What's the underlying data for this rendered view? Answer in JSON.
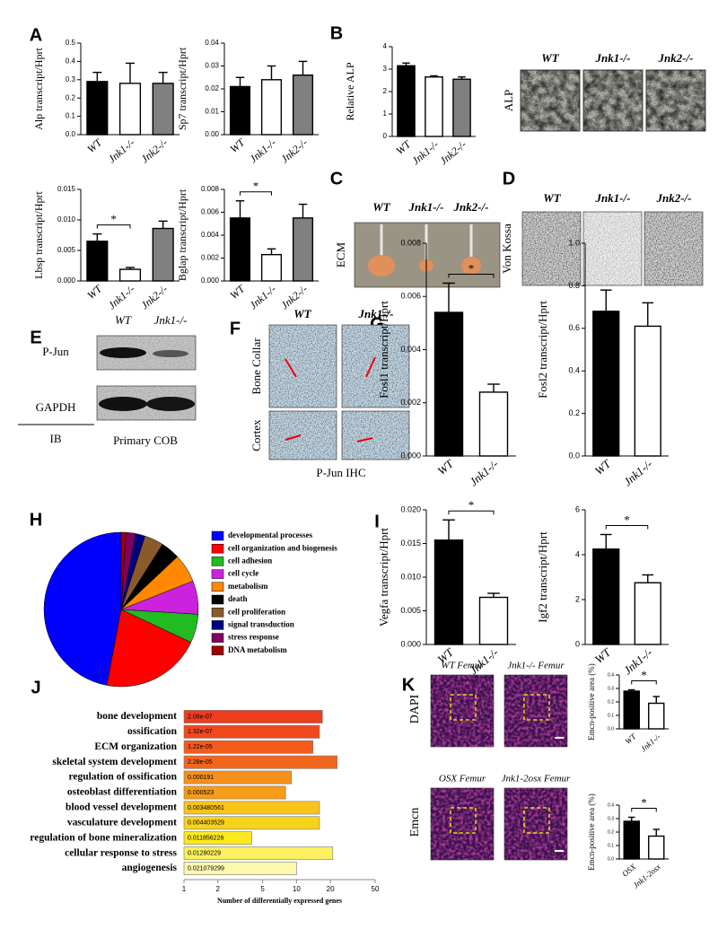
{
  "panel_labels": [
    "A",
    "B",
    "C",
    "D",
    "E",
    "F",
    "G",
    "H",
    "I",
    "J",
    "K"
  ],
  "alp_images": {
    "label": "ALP",
    "columns": [
      "WT",
      "Jnk1-/-",
      "Jnk2-/-"
    ]
  },
  "ecm": {
    "label": "ECM",
    "columns": [
      "WT",
      "Jnk1-/-",
      "Jnk2-/-"
    ]
  },
  "von_kossa": {
    "label": "Von Kossa",
    "columns": [
      "WT",
      "Jnk1-/-",
      "Jnk2-/-"
    ]
  },
  "western_blot": {
    "columns": [
      "WT",
      "Jnk1-/-"
    ],
    "rows": [
      "P-Jun",
      "GAPDH"
    ],
    "method": "IB",
    "sample": "Primary COB"
  },
  "ihc": {
    "columns": [
      "WT",
      "Jnk1-/-"
    ],
    "rows": [
      "Bone Collar",
      "Cortex"
    ],
    "caption": "P-Jun IHC"
  },
  "femur": {
    "images": [
      "WT Femur",
      "Jnk1-/- Femur",
      "OSX Femur",
      "Jnk1-2osx Femur"
    ],
    "stains": [
      "DAPI",
      "Emcn"
    ]
  },
  "chart_data": [
    {
      "type": "bar",
      "ylabel": "Alp transcript/Hprt",
      "categories": [
        "WT",
        "Jnk1-/-",
        "Jnk2-/-"
      ],
      "values": [
        0.29,
        0.28,
        0.28
      ],
      "errors": [
        0.05,
        0.11,
        0.06
      ],
      "colors": [
        "#000000",
        "#ffffff",
        "#808080"
      ],
      "ylim": [
        0,
        0.5
      ],
      "yticks": [
        {
          "value": 0,
          "label": "0.0"
        },
        0.1,
        0.2,
        0.3,
        0.4,
        0.5
      ]
    },
    {
      "type": "bar",
      "ylabel": "Sp7 transcript/Hprt",
      "categories": [
        "WT",
        "Jnk1-/-",
        "Jnk2-/-"
      ],
      "values": [
        0.021,
        0.024,
        0.026
      ],
      "errors": [
        0.004,
        0.006,
        0.006
      ],
      "colors": [
        "#000000",
        "#ffffff",
        "#808080"
      ],
      "ylim": [
        0,
        0.04
      ],
      "yticks": [
        {
          "value": 0,
          "label": "0.00"
        },
        0.01,
        0.02,
        0.03,
        0.04
      ]
    },
    {
      "type": "bar",
      "ylabel": "Lbsp transcript/Hprt",
      "categories": [
        "WT",
        "Jnk1-/-",
        "Jnk2-/-"
      ],
      "values": [
        0.0065,
        0.0019,
        0.0086
      ],
      "errors": [
        0.0012,
        0.0003,
        0.0012
      ],
      "colors": [
        "#000000",
        "#ffffff",
        "#808080"
      ],
      "ylim": [
        0,
        0.015
      ],
      "yticks": [
        {
          "value": 0,
          "label": "0.000"
        },
        0.005,
        {
          "value": 0.01,
          "label": "0.010"
        },
        {
          "value": 0.015,
          "label": "0.015"
        }
      ],
      "significance": "*"
    },
    {
      "type": "bar",
      "ylabel": "Bglap transcript/Hprt",
      "categories": [
        "WT",
        "Jnk1-/-",
        "Jnk2-/-"
      ],
      "values": [
        0.0055,
        0.0023,
        0.0055
      ],
      "errors": [
        0.0015,
        0.0005,
        0.0012
      ],
      "colors": [
        "#000000",
        "#ffffff",
        "#808080"
      ],
      "ylim": [
        0,
        0.008
      ],
      "yticks": [
        {
          "value": 0,
          "label": "0.000"
        },
        0.002,
        0.004,
        0.006,
        0.008
      ],
      "significance": "*"
    },
    {
      "type": "bar",
      "ylabel": "Relative ALP",
      "categories": [
        "WT",
        "Jnk1-/-",
        "Jnk2-/-"
      ],
      "values": [
        3.15,
        2.65,
        2.55
      ],
      "errors": [
        0.12,
        0.05,
        0.1
      ],
      "colors": [
        "#000000",
        "#ffffff",
        "#808080"
      ],
      "ylim": [
        0,
        4
      ],
      "yticks": [
        0,
        1,
        2,
        3,
        4
      ]
    },
    {
      "type": "bar",
      "ylabel": "Fosl1 transcript/Hprt",
      "categories": [
        "WT",
        "Jnk1-/-"
      ],
      "values": [
        0.0054,
        0.0024
      ],
      "errors": [
        0.0011,
        0.0003
      ],
      "colors": [
        "#000000",
        "#ffffff"
      ],
      "ylim": [
        0,
        0.008
      ],
      "yticks": [
        {
          "value": 0,
          "label": "0.000"
        },
        0.002,
        0.004,
        0.006,
        0.008
      ],
      "significance": "*"
    },
    {
      "type": "bar",
      "ylabel": "Fosl2 transcript/Hprt",
      "categories": [
        "WT",
        "Jnk1-/-"
      ],
      "values": [
        0.68,
        0.61
      ],
      "errors": [
        0.1,
        0.11
      ],
      "colors": [
        "#000000",
        "#ffffff"
      ],
      "ylim": [
        0,
        1
      ],
      "yticks": [
        {
          "value": 0,
          "label": "0.0"
        },
        0.2,
        0.4,
        0.6,
        0.8,
        {
          "value": 1,
          "label": "1.0"
        }
      ]
    },
    {
      "type": "pie",
      "categories": [
        "developmental processes",
        "cell organization and biogenesis",
        "cell adhesion",
        "cell cycle",
        "metabolism",
        "death",
        "cell proliferation",
        "signal transduction",
        "stress response",
        "DNA metabolism"
      ],
      "values": [
        47,
        21,
        6,
        7,
        6,
        4,
        4,
        2,
        2,
        1
      ],
      "colors": [
        "#0000ff",
        "#ff0000",
        "#22bb22",
        "#cc22dd",
        "#ff8800",
        "#000000",
        "#8b5a2b",
        "#000080",
        "#800060",
        "#a00000"
      ]
    },
    {
      "type": "bar",
      "ylabel": "Vegfa transcript/Hprt",
      "categories": [
        "WT",
        "Jnk1-/-"
      ],
      "values": [
        0.0155,
        0.007
      ],
      "errors": [
        0.003,
        0.0006
      ],
      "colors": [
        "#000000",
        "#ffffff"
      ],
      "ylim": [
        0,
        0.02
      ],
      "yticks": [
        {
          "value": 0,
          "label": "0.000"
        },
        0.005,
        {
          "value": 0.01,
          "label": "0.010"
        },
        0.015,
        {
          "value": 0.02,
          "label": "0.020"
        }
      ],
      "significance": "*"
    },
    {
      "type": "bar",
      "ylabel": "Igf2 transcript/Hprt",
      "categories": [
        "WT",
        "Jnk1-/-"
      ],
      "values": [
        4.25,
        2.75
      ],
      "errors": [
        0.65,
        0.35
      ],
      "colors": [
        "#000000",
        "#ffffff"
      ],
      "ylim": [
        0,
        6
      ],
      "yticks": [
        0,
        2,
        4,
        6
      ],
      "significance": "*"
    },
    {
      "type": "hbar",
      "xlabel": "Number of differentially expressed genes",
      "xscale": "log",
      "categories": [
        "bone development",
        "ossification",
        "ECM organization",
        "skeletal system development",
        "regulation of ossification",
        "osteoblast differentiation",
        "blood vessel development",
        "vasculature development",
        "regulation of bone mineralization",
        "cellular response to stress",
        "angiogenesis"
      ],
      "values": [
        17,
        16,
        14,
        23,
        9,
        8,
        16,
        16,
        4,
        21,
        10
      ],
      "pvalues": [
        "2.08e-07",
        "1.32e-07",
        "1.22e-05",
        "2.28e-05",
        "0.000191",
        "0.000523",
        "0.003480561",
        "0.004403529",
        "0.011856226",
        "0.01280229",
        "0.021079299"
      ],
      "colors": [
        "#f03c1e",
        "#f2481e",
        "#f45a1c",
        "#f4661c",
        "#f7901a",
        "#f79c18",
        "#f9c41a",
        "#f9d21a",
        "#fce81e",
        "#fcf060",
        "#fcf8b0"
      ],
      "xlim": [
        1,
        50
      ],
      "xticks": [
        1,
        2,
        5,
        10,
        20,
        50
      ]
    },
    {
      "type": "bar",
      "ylabel": "Emcn-positive area (%)",
      "categories": [
        "WT",
        "Jnk1-/-"
      ],
      "values": [
        0.28,
        0.19
      ],
      "errors": [
        0.01,
        0.05
      ],
      "colors": [
        "#000000",
        "#ffffff"
      ],
      "ylim": [
        0,
        0.4
      ],
      "yticks": [
        {
          "value": 0,
          "label": "0.0"
        },
        0.1,
        0.2,
        0.3,
        0.4
      ],
      "significance": "*"
    },
    {
      "type": "bar",
      "ylabel": "Emcn-positive area (%)",
      "categories": [
        "OSX",
        "Jnk1-2osx"
      ],
      "values": [
        0.28,
        0.17
      ],
      "errors": [
        0.03,
        0.05
      ],
      "colors": [
        "#000000",
        "#ffffff"
      ],
      "ylim": [
        0,
        0.4
      ],
      "yticks": [
        {
          "value": 0,
          "label": "0.0"
        },
        0.1,
        0.2,
        0.3,
        0.4
      ],
      "significance": "*"
    }
  ]
}
